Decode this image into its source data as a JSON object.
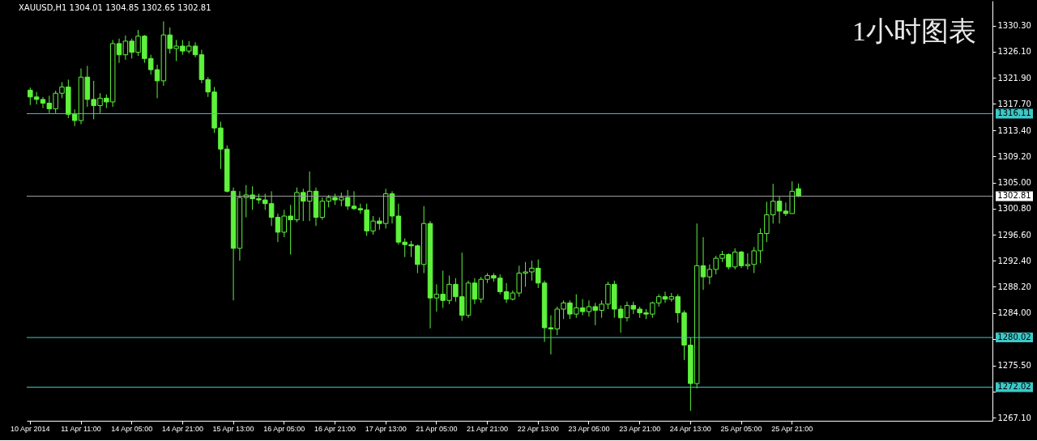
{
  "chart_data": {
    "type": "candlestick",
    "title": "XAUUSD,H1 1304.01 1304.85 1302.65 1302.81",
    "annotations": [
      "1小时图表"
    ],
    "categories": [
      "10 Apr 2014",
      null,
      null,
      null,
      null,
      null,
      null,
      null,
      "11 Apr 11:00",
      null,
      null,
      null,
      null,
      null,
      null,
      null,
      "14 Apr 05:00",
      null,
      null,
      null,
      null,
      null,
      null,
      null,
      "14 Apr 21:00",
      null,
      null,
      null,
      null,
      null,
      null,
      null,
      "15 Apr 13:00",
      null,
      null,
      null,
      null,
      null,
      null,
      null,
      "16 Apr 05:00",
      null,
      null,
      null,
      null,
      null,
      null,
      null,
      "16 Apr 21:00",
      null,
      null,
      null,
      null,
      null,
      null,
      null,
      "17 Apr 13:00",
      null,
      null,
      null,
      null,
      null,
      null,
      null,
      "21 Apr 05:00",
      null,
      null,
      null,
      null,
      null,
      null,
      null,
      "21 Apr 21:00",
      null,
      null,
      null,
      null,
      null,
      null,
      null,
      "22 Apr 13:00",
      null,
      null,
      null,
      null,
      null,
      null,
      null,
      "23 Apr 05:00",
      null,
      null,
      null,
      null,
      null,
      null,
      null,
      "23 Apr 21:00",
      null,
      null,
      null,
      null,
      null,
      null,
      null,
      "24 Apr 13:00",
      null,
      null,
      null,
      null,
      null,
      null,
      null,
      "25 Apr 05:00",
      null,
      null,
      null,
      null,
      null,
      null,
      null,
      "25 Apr 21:00",
      null,
      null,
      null,
      null,
      null,
      null,
      null,
      null,
      null,
      null,
      null,
      null,
      null,
      null,
      null,
      null,
      null,
      null,
      null,
      null,
      null,
      null,
      null,
      null,
      null,
      null,
      null,
      null,
      null,
      null,
      null
    ],
    "series": [
      {
        "color": "#5ef23c",
        "ohlc": [
          [
            1319.9,
            1320.3,
            1317.5,
            1318.8
          ],
          [
            1318.8,
            1319.6,
            1317.6,
            1318.4
          ],
          [
            1318.4,
            1318.8,
            1317.0,
            1317.8
          ],
          [
            1317.8,
            1319.0,
            1316.2,
            1316.9
          ],
          [
            1316.9,
            1319.8,
            1316.2,
            1319.4
          ],
          [
            1319.4,
            1321.2,
            1318.6,
            1320.4
          ],
          [
            1320.4,
            1321.6,
            1315.4,
            1316.0
          ],
          [
            1316.0,
            1316.8,
            1314.1,
            1315.0
          ],
          [
            1315.0,
            1323.4,
            1314.4,
            1322.0
          ],
          [
            1322.0,
            1323.8,
            1317.2,
            1318.4
          ],
          [
            1318.4,
            1321.4,
            1315.2,
            1317.4
          ],
          [
            1317.4,
            1319.4,
            1316.2,
            1318.6
          ],
          [
            1318.6,
            1319.2,
            1317.0,
            1318.0
          ],
          [
            1318.0,
            1328.0,
            1317.2,
            1327.4
          ],
          [
            1327.4,
            1328.2,
            1324.3,
            1325.6
          ],
          [
            1325.6,
            1328.7,
            1324.8,
            1327.8
          ],
          [
            1327.8,
            1328.2,
            1325.0,
            1326.0
          ],
          [
            1326.0,
            1329.6,
            1325.4,
            1328.6
          ],
          [
            1328.6,
            1328.8,
            1324.3,
            1325.0
          ],
          [
            1325.0,
            1325.6,
            1322.4,
            1323.2
          ],
          [
            1323.2,
            1324.0,
            1318.6,
            1321.4
          ],
          [
            1321.4,
            1331.0,
            1320.6,
            1328.8
          ],
          [
            1328.8,
            1330.0,
            1325.8,
            1326.6
          ],
          [
            1326.6,
            1328.0,
            1324.6,
            1327.0
          ],
          [
            1327.0,
            1328.0,
            1325.6,
            1326.2
          ],
          [
            1326.2,
            1327.8,
            1325.8,
            1327.0
          ],
          [
            1327.0,
            1327.6,
            1325.2,
            1325.6
          ],
          [
            1325.6,
            1326.4,
            1321.0,
            1321.6
          ],
          [
            1321.6,
            1322.0,
            1318.8,
            1319.6
          ],
          [
            1319.6,
            1320.4,
            1313.0,
            1313.8
          ],
          [
            1313.8,
            1314.8,
            1307.2,
            1310.4
          ],
          [
            1310.4,
            1311.0,
            1303.4,
            1303.6
          ],
          [
            1303.6,
            1304.2,
            1286.0,
            1294.4
          ],
          [
            1294.4,
            1303.6,
            1292.4,
            1302.6
          ],
          [
            1302.6,
            1304.6,
            1299.4,
            1303.0
          ],
          [
            1303.0,
            1304.4,
            1300.6,
            1302.4
          ],
          [
            1302.4,
            1303.2,
            1301.6,
            1302.2
          ],
          [
            1302.2,
            1303.2,
            1300.6,
            1301.6
          ],
          [
            1301.6,
            1303.6,
            1298.0,
            1299.4
          ],
          [
            1299.4,
            1300.0,
            1295.4,
            1297.0
          ],
          [
            1297.0,
            1300.6,
            1296.2,
            1299.6
          ],
          [
            1299.6,
            1301.4,
            1293.4,
            1299.0
          ],
          [
            1299.0,
            1304.2,
            1298.6,
            1303.4
          ],
          [
            1303.4,
            1304.0,
            1298.8,
            1302.0
          ],
          [
            1302.0,
            1306.8,
            1298.8,
            1303.6
          ],
          [
            1303.6,
            1304.2,
            1298.0,
            1299.4
          ],
          [
            1299.4,
            1302.6,
            1299.0,
            1302.0
          ],
          [
            1302.0,
            1303.0,
            1301.0,
            1302.6
          ],
          [
            1302.6,
            1303.2,
            1301.4,
            1302.2
          ],
          [
            1302.2,
            1303.4,
            1301.2,
            1302.6
          ],
          [
            1302.6,
            1303.8,
            1300.6,
            1301.2
          ],
          [
            1301.2,
            1303.6,
            1300.6,
            1300.8
          ],
          [
            1300.8,
            1301.6,
            1300.0,
            1300.6
          ],
          [
            1300.6,
            1301.6,
            1296.4,
            1297.2
          ],
          [
            1297.2,
            1299.6,
            1296.6,
            1298.8
          ],
          [
            1298.8,
            1299.4,
            1297.4,
            1298.4
          ],
          [
            1298.4,
            1304.0,
            1297.6,
            1303.2
          ],
          [
            1303.2,
            1303.6,
            1298.4,
            1299.6
          ],
          [
            1299.6,
            1301.6,
            1295.0,
            1295.4
          ],
          [
            1295.4,
            1296.0,
            1293.0,
            1295.0
          ],
          [
            1295.0,
            1295.6,
            1293.0,
            1294.8
          ],
          [
            1294.8,
            1295.0,
            1290.4,
            1291.8
          ],
          [
            1291.8,
            1301.2,
            1290.4,
            1298.4
          ],
          [
            1298.4,
            1298.8,
            1281.5,
            1286.4
          ],
          [
            1286.4,
            1288.6,
            1284.2,
            1287.0
          ],
          [
            1287.0,
            1290.8,
            1284.8,
            1286.0
          ],
          [
            1286.0,
            1290.0,
            1285.4,
            1288.6
          ],
          [
            1288.6,
            1289.6,
            1285.8,
            1286.6
          ],
          [
            1286.6,
            1293.7,
            1282.7,
            1283.6
          ],
          [
            1283.6,
            1289.2,
            1283.2,
            1288.8
          ],
          [
            1288.8,
            1289.6,
            1285.4,
            1286.2
          ],
          [
            1286.2,
            1289.8,
            1285.6,
            1289.4
          ],
          [
            1289.4,
            1290.4,
            1288.8,
            1290.0
          ],
          [
            1290.0,
            1290.4,
            1289.0,
            1289.6
          ],
          [
            1289.6,
            1290.2,
            1287.0,
            1287.4
          ],
          [
            1287.4,
            1288.8,
            1285.6,
            1286.2
          ],
          [
            1286.2,
            1287.6,
            1286.0,
            1287.2
          ],
          [
            1287.2,
            1291.6,
            1286.6,
            1290.4
          ],
          [
            1290.4,
            1292.2,
            1288.2,
            1290.6
          ],
          [
            1290.6,
            1292.4,
            1289.2,
            1291.2
          ],
          [
            1291.2,
            1292.6,
            1288.0,
            1288.8
          ],
          [
            1288.8,
            1289.2,
            1279.3,
            1281.6
          ],
          [
            1281.6,
            1283.6,
            1277.3,
            1281.4
          ],
          [
            1281.4,
            1285.0,
            1280.4,
            1284.6
          ],
          [
            1284.6,
            1286.0,
            1283.0,
            1285.6
          ],
          [
            1285.6,
            1286.0,
            1283.0,
            1283.8
          ],
          [
            1283.8,
            1287.0,
            1283.2,
            1284.8
          ],
          [
            1284.8,
            1286.2,
            1283.6,
            1284.2
          ],
          [
            1284.2,
            1286.0,
            1283.4,
            1285.0
          ],
          [
            1285.0,
            1285.6,
            1282.0,
            1284.4
          ],
          [
            1284.4,
            1286.0,
            1283.2,
            1285.4
          ],
          [
            1285.4,
            1289.0,
            1284.6,
            1288.6
          ],
          [
            1288.6,
            1289.2,
            1283.2,
            1284.6
          ],
          [
            1284.6,
            1285.2,
            1280.8,
            1283.2
          ],
          [
            1283.2,
            1285.8,
            1282.6,
            1285.2
          ],
          [
            1285.2,
            1285.8,
            1283.8,
            1284.6
          ],
          [
            1284.6,
            1285.0,
            1283.2,
            1284.0
          ],
          [
            1284.0,
            1284.6,
            1283.0,
            1283.8
          ],
          [
            1283.8,
            1285.8,
            1283.2,
            1285.6
          ],
          [
            1285.6,
            1287.0,
            1285.0,
            1286.6
          ],
          [
            1286.6,
            1287.4,
            1285.6,
            1286.2
          ],
          [
            1286.2,
            1287.2,
            1285.8,
            1286.6
          ],
          [
            1286.6,
            1287.0,
            1282.4,
            1284.0
          ],
          [
            1284.0,
            1284.4,
            1276.4,
            1278.8
          ],
          [
            1278.8,
            1280.0,
            1268.2,
            1272.6
          ],
          [
            1272.6,
            1298.4,
            1271.8,
            1291.6
          ],
          [
            1291.6,
            1296.2,
            1287.7,
            1289.8
          ],
          [
            1289.8,
            1291.8,
            1288.6,
            1291.0
          ],
          [
            1291.0,
            1293.2,
            1290.2,
            1292.8
          ],
          [
            1292.8,
            1294.0,
            1292.2,
            1293.4
          ],
          [
            1293.4,
            1293.6,
            1291.0,
            1291.4
          ],
          [
            1291.4,
            1294.4,
            1291.0,
            1293.8
          ],
          [
            1293.8,
            1294.0,
            1291.2,
            1291.6
          ],
          [
            1291.6,
            1293.6,
            1291.0,
            1291.8
          ],
          [
            1291.8,
            1294.6,
            1290.4,
            1294.0
          ],
          [
            1294.0,
            1297.6,
            1292.0,
            1296.8
          ],
          [
            1296.8,
            1301.9,
            1295.4,
            1299.8
          ],
          [
            1299.8,
            1304.8,
            1298.4,
            1302.0
          ],
          [
            1302.0,
            1302.8,
            1298.4,
            1300.4
          ],
          [
            1300.4,
            1301.8,
            1299.6,
            1300.0
          ],
          [
            1300.0,
            1305.2,
            1300.0,
            1303.6
          ],
          [
            1304.01,
            1304.85,
            1302.65,
            1302.81
          ],
          null,
          null,
          null,
          null,
          null,
          null,
          null,
          null,
          null,
          null,
          null,
          null,
          null,
          null,
          null,
          null,
          null,
          null,
          null,
          null,
          null,
          null,
          null,
          null,
          null,
          null,
          null,
          null,
          null,
          null
        ]
      }
    ],
    "ylim": [
      1266.6,
      1334.3
    ],
    "yticks": [
      {
        "value": 1330.3,
        "label": "1330.30"
      },
      {
        "value": 1326.1,
        "label": "1326.10"
      },
      {
        "value": 1321.9,
        "label": "1321.90"
      },
      {
        "value": 1317.7,
        "label": "1317.70"
      },
      {
        "value": 1313.4,
        "label": "1313.40"
      },
      {
        "value": 1309.2,
        "label": "1309.20"
      },
      {
        "value": 1305,
        "label": "1305.00"
      },
      {
        "value": 1300.8,
        "label": "1300.80"
      },
      {
        "value": 1296.6,
        "label": "1296.60"
      },
      {
        "value": 1292.4,
        "label": "1292.40"
      },
      {
        "value": 1288.2,
        "label": "1288.20"
      },
      {
        "value": 1284,
        "label": "1284.00"
      },
      {
        "value": 1279.8,
        "label": null
      },
      {
        "value": 1275.5,
        "label": "1275.50"
      },
      {
        "value": 1271.3,
        "label": null
      },
      {
        "value": 1267.1,
        "label": "1267.10"
      }
    ],
    "ref_lines": [
      {
        "axis": "y",
        "value": 1316.11,
        "label": "1316.11",
        "color": "#3cc8c8"
      },
      {
        "axis": "y",
        "value": 1302.81,
        "label": "1302.81",
        "color": "#a0a0a0"
      },
      {
        "axis": "y",
        "value": 1280.02,
        "label": "1280.02",
        "color": "#3cc8c8"
      },
      {
        "axis": "y",
        "value": 1272.02,
        "label": "1272.02",
        "color": "#3cc8c8"
      }
    ]
  }
}
